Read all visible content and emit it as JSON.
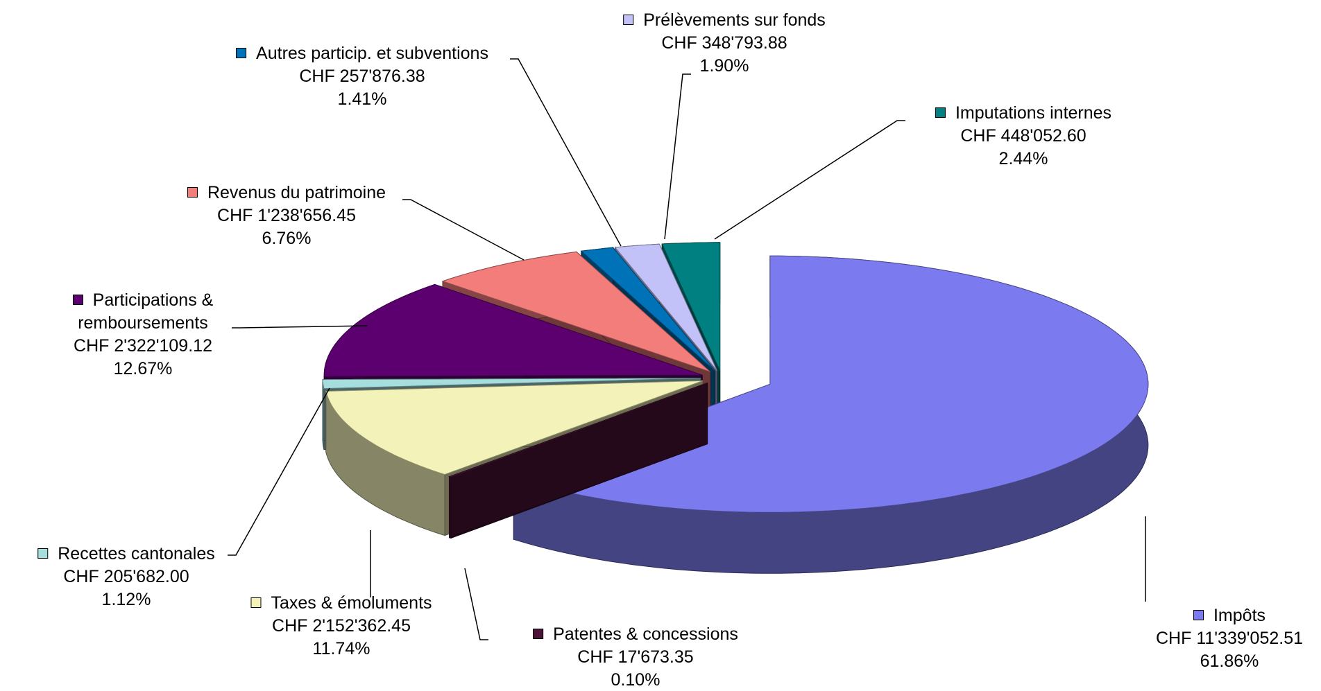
{
  "chart_data": {
    "type": "pie3d",
    "categories": [
      "Impôts",
      "Patentes & concessions",
      "Taxes & émoluments",
      "Recettes cantonales",
      "Participations & remboursements",
      "Revenus du patrimoine",
      "Autres particip. et subventions",
      "Prélèvements sur fonds",
      "Imputations internes"
    ],
    "values": [
      11339052.51,
      17673.35,
      2152362.45,
      205682.0,
      2322109.12,
      1238656.45,
      257876.38,
      348793.88,
      448052.6
    ],
    "value_labels": [
      "CHF 11'339'052.51",
      "CHF 17'673.35",
      "CHF 2'152'362.45",
      "CHF 205'682.00",
      "CHF 2'322'109.12",
      "CHF 1'238'656.45",
      "CHF 257'876.38",
      "CHF 348'793.88",
      "CHF 448'052.60"
    ],
    "percentages": [
      61.86,
      0.1,
      11.74,
      1.12,
      12.67,
      6.76,
      1.41,
      1.9,
      2.44
    ],
    "percentage_labels": [
      "61.86%",
      "0.10%",
      "11.74%",
      "1.12%",
      "12.67%",
      "6.76%",
      "1.41%",
      "1.90%",
      "2.44%"
    ],
    "colors": [
      "#7b7bef",
      "#4e1438",
      "#f3f3b9",
      "#a6dede",
      "#5c0070",
      "#f27d7b",
      "#0072b8",
      "#c2c2f8",
      "#008080"
    ]
  }
}
